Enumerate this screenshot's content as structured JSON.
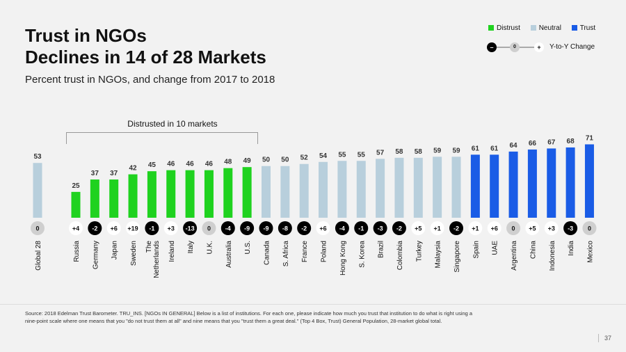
{
  "title_line1": "Trust in NGOs",
  "title_line2": "Declines in 14 of 28 Markets",
  "subtitle": "Percent trust in NGOs, and change from 2017 to 2018",
  "legend": {
    "distrust": "Distrust",
    "neutral": "Neutral",
    "trust": "Trust",
    "yoy_minus": "–",
    "yoy_zero": "0",
    "yoy_plus": "+",
    "yoy_label": "Y-to-Y Change"
  },
  "colors": {
    "distrust": "#1fd21f",
    "neutral": "#b8cfdc",
    "trust": "#1a5ce6"
  },
  "annotation": "Distrusted in 10  markets",
  "source": "Source: 2018 Edelman Trust Barometer. TRU_INS. [NGOs IN GENERAL] Below is a list of institutions. For each one, please indicate how much you trust that institution to do what is right using a nine-point scale where one means that you \"do not trust them at all\" and nine means that you \"trust them a great deal.\" (Top 4 Box, Trust)  General Population, 28-market global total.",
  "page_number": "37",
  "chart_data": {
    "type": "bar",
    "title": "Trust in NGOs Declines in 14 of 28 Markets",
    "ylim": [
      0,
      80
    ],
    "categories": [
      "Global 28",
      "Russia",
      "Germany",
      "Japan",
      "Sweden",
      "The Netherlands",
      "Ireland",
      "Italy",
      "U.K.",
      "Australia",
      "U.S.",
      "Canada",
      "S. Africa",
      "France",
      "Poland",
      "Hong Kong",
      "S. Korea",
      "Brazil",
      "Colombia",
      "Turkey",
      "Malaysia",
      "Singapore",
      "Spain",
      "UAE",
      "Argentina",
      "China",
      "Indonesia",
      "India",
      "Mexico"
    ],
    "values": [
      53,
      25,
      37,
      37,
      42,
      45,
      46,
      46,
      46,
      48,
      49,
      50,
      50,
      52,
      54,
      55,
      55,
      57,
      58,
      58,
      59,
      59,
      61,
      61,
      64,
      66,
      67,
      68,
      71
    ],
    "categories_class": [
      "neutral",
      "distrust",
      "distrust",
      "distrust",
      "distrust",
      "distrust",
      "distrust",
      "distrust",
      "distrust",
      "distrust",
      "distrust",
      "neutral",
      "neutral",
      "neutral",
      "neutral",
      "neutral",
      "neutral",
      "neutral",
      "neutral",
      "neutral",
      "neutral",
      "neutral",
      "trust",
      "trust",
      "trust",
      "trust",
      "trust",
      "trust",
      "trust"
    ],
    "changes": [
      "0",
      "+4",
      "-2",
      "+6",
      "+19",
      "-1",
      "+3",
      "-13",
      "0",
      "-4",
      "-9",
      "-9",
      "-8",
      "-2",
      "+6",
      "-4",
      "-1",
      "-3",
      "-2",
      "+5",
      "+1",
      "-2",
      "+1",
      "+6",
      "0",
      "+5",
      "+3",
      "-3",
      "0"
    ]
  }
}
